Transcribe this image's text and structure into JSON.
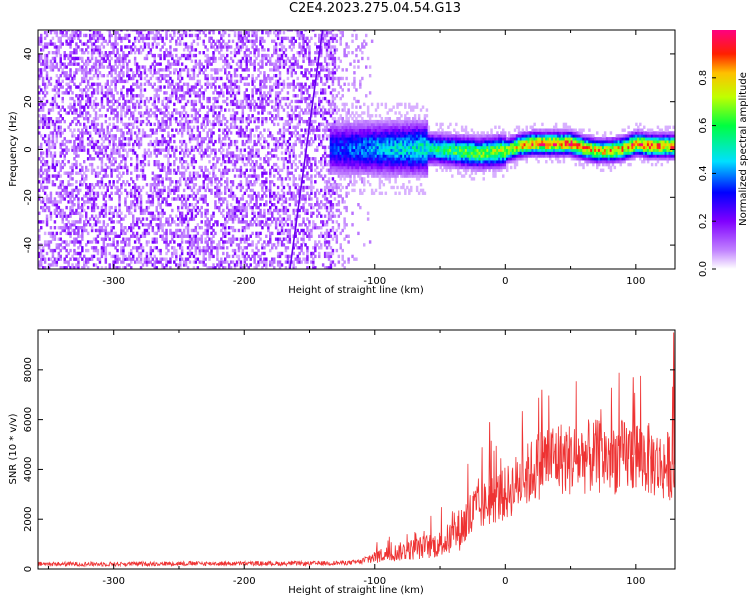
{
  "figure_title": "C2E4.2023.275.04.54.G13",
  "colors": {
    "snr_line": "#ee3333",
    "frame": "#000000",
    "colormap": [
      "#ffffff",
      "#8000ff",
      "#0000ff",
      "#00ffff",
      "#00ff00",
      "#ffff00",
      "#ff0000",
      "#ff0080"
    ]
  },
  "chart_data": [
    {
      "type": "heatmap",
      "title": "",
      "xlabel": "Height of straight line (km)",
      "ylabel": "Frequency (Hz)",
      "xlim": [
        -358,
        130
      ],
      "ylim": [
        -50,
        50
      ],
      "x_ticks": [
        -300,
        -200,
        -100,
        0,
        100
      ],
      "x_tick_labels": [
        "-300",
        "-200",
        "-100",
        "0",
        "100"
      ],
      "y_ticks": [
        -40,
        -20,
        0,
        20,
        40
      ],
      "y_tick_labels": [
        "-40",
        "-20",
        "0",
        "20",
        "40"
      ],
      "colorbar": {
        "label": "Normalized spectral amplitude",
        "range": [
          0,
          1
        ],
        "ticks": [
          0.0,
          0.2,
          0.4,
          0.6,
          0.8
        ],
        "tick_labels": [
          "0.0",
          "0.2",
          "0.4",
          "0.6",
          "0.8"
        ]
      },
      "signal_track": {
        "x": [
          -135,
          -120,
          -100,
          -80,
          -60,
          -40,
          -20,
          0,
          10,
          20,
          30,
          40,
          50,
          60,
          70,
          80,
          90,
          100,
          110,
          120,
          130
        ],
        "freq": [
          0,
          0,
          0,
          0,
          0,
          -1,
          -2,
          -1,
          1,
          2,
          2,
          2,
          2,
          0,
          -1,
          -1,
          0,
          2,
          1,
          1,
          1
        ],
        "peak_amplitude": [
          0.35,
          0.4,
          0.45,
          0.5,
          0.55,
          0.65,
          0.7,
          0.75,
          0.85,
          0.9,
          0.95,
          0.95,
          0.95,
          0.9,
          0.85,
          0.85,
          0.9,
          0.95,
          0.95,
          0.9,
          0.9
        ]
      },
      "noise_region": {
        "x_range": [
          -358,
          -130
        ],
        "amplitude": 0.08
      },
      "chirp_line": {
        "x": [
          -165,
          -140
        ],
        "freq": [
          -50,
          50
        ]
      },
      "grid": false
    },
    {
      "type": "line",
      "title": "",
      "xlabel": "Height of straight line (km)",
      "ylabel": "SNR (10 * v/v)",
      "xlim": [
        -358,
        130
      ],
      "ylim": [
        0,
        9600
      ],
      "x_ticks": [
        -300,
        -200,
        -100,
        0,
        100
      ],
      "x_tick_labels": [
        "-300",
        "-200",
        "-100",
        "0",
        "100"
      ],
      "y_ticks": [
        0,
        2000,
        4000,
        6000,
        8000
      ],
      "y_tick_labels": [
        "0",
        "2000",
        "4000",
        "6000",
        "8000"
      ],
      "series": [
        {
          "x": [
            -358,
            -300,
            -250,
            -200,
            -150,
            -120,
            -110,
            -100,
            -90,
            -80,
            -70,
            -60,
            -50,
            -40,
            -30,
            -20,
            -10,
            0,
            10,
            20,
            30,
            40,
            50,
            60,
            70,
            80,
            90,
            100,
            110,
            120,
            128
          ],
          "y": [
            200,
            200,
            220,
            220,
            220,
            250,
            300,
            500,
            600,
            700,
            800,
            900,
            1000,
            1300,
            1900,
            2400,
            2800,
            3000,
            3500,
            3900,
            4400,
            4500,
            4400,
            4500,
            4500,
            4500,
            4500,
            4600,
            4400,
            4100,
            4200
          ]
        }
      ],
      "spikes": [
        {
          "x": -12,
          "y": 5900
        },
        {
          "x": 28,
          "y": 7200
        },
        {
          "x": 98,
          "y": 7700
        },
        {
          "x": 129,
          "y": 9500
        }
      ],
      "grid": false
    }
  ]
}
